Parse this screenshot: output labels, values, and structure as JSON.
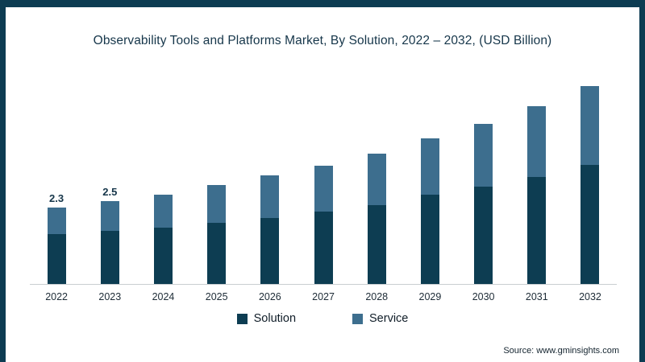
{
  "frame": {
    "border_color": "#0d3c52"
  },
  "chart_data": {
    "type": "bar",
    "stacked": true,
    "title": "Observability Tools and Platforms Market, By Solution, 2022 – 2032, (USD Billion)",
    "categories": [
      "2022",
      "2023",
      "2024",
      "2025",
      "2026",
      "2027",
      "2028",
      "2029",
      "2030",
      "2031",
      "2032"
    ],
    "series": [
      {
        "name": "Solution",
        "color": "#0d3d52",
        "values": [
          1.5,
          1.6,
          1.7,
          1.85,
          2.0,
          2.2,
          2.4,
          2.7,
          2.95,
          3.25,
          3.6
        ]
      },
      {
        "name": "Service",
        "color": "#3d6e8e",
        "values": [
          0.8,
          0.9,
          1.0,
          1.15,
          1.3,
          1.4,
          1.55,
          1.7,
          1.9,
          2.15,
          2.4
        ]
      }
    ],
    "totals": [
      2.3,
      2.5,
      2.7,
      3.0,
      3.3,
      3.6,
      3.95,
      4.4,
      4.85,
      5.4,
      6.0
    ],
    "data_labels": [
      {
        "category": "2022",
        "label": "2.3"
      },
      {
        "category": "2023",
        "label": "2.5"
      }
    ],
    "xlabel": "",
    "ylabel": "",
    "ylim": [
      0,
      6.5
    ],
    "grid": false,
    "legend_position": "bottom"
  },
  "legend": [
    {
      "label": "Solution",
      "color": "#0d3d52"
    },
    {
      "label": "Service",
      "color": "#3d6e8e"
    }
  ],
  "source": "Source: www.gminsights.com"
}
